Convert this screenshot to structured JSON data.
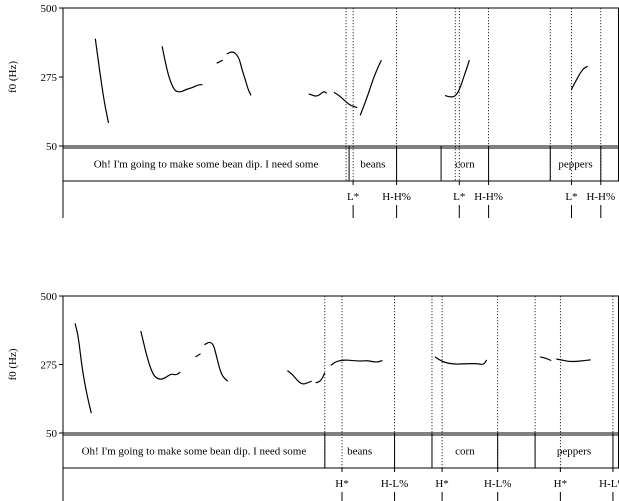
{
  "chart_data": [
    {
      "type": "line",
      "ylabel": "f0 (Hz)",
      "ylim": [
        50,
        500
      ],
      "yticks": [
        50,
        275,
        500
      ],
      "xlim": [
        0,
        550
      ],
      "tiers": {
        "words": [
          {
            "text": "Oh! I'm going to make some bean dip. I need some",
            "x0": 0,
            "x1": 283
          },
          {
            "text": "beans",
            "x0": 283,
            "x1": 330
          },
          {
            "text": "",
            "x0": 330,
            "x1": 374
          },
          {
            "text": "corn",
            "x0": 374,
            "x1": 421
          },
          {
            "text": "",
            "x0": 421,
            "x1": 482
          },
          {
            "text": "peppers",
            "x0": 482,
            "x1": 532
          },
          {
            "text": "",
            "x0": 532,
            "x1": 550
          }
        ],
        "tone_boundaries": [
          280,
          287,
          330,
          388,
          392,
          421,
          482,
          503,
          532
        ],
        "tones": [
          {
            "text": "L*",
            "x": 287
          },
          {
            "text": "H-H%",
            "x": 330
          },
          {
            "text": "L*",
            "x": 392
          },
          {
            "text": "H-H%",
            "x": 421
          },
          {
            "text": "L*",
            "x": 503
          },
          {
            "text": "H-H%",
            "x": 532
          }
        ]
      },
      "series": [
        {
          "points": [
            [
              32,
              400
            ],
            [
              36,
              300
            ],
            [
              41,
              190
            ],
            [
              45,
              125
            ]
          ]
        },
        {
          "points": [
            [
              98,
              375
            ],
            [
              104,
              280
            ],
            [
              110,
              230
            ],
            [
              116,
              225
            ],
            [
              122,
              235
            ],
            [
              128,
              240
            ],
            [
              134,
              250
            ],
            [
              138,
              250
            ]
          ]
        },
        {
          "points": [
            [
              152,
              320
            ],
            [
              158,
              330
            ]
          ]
        },
        {
          "points": [
            [
              162,
              350
            ],
            [
              168,
              360
            ],
            [
              174,
              340
            ],
            [
              177,
              300
            ],
            [
              180,
              270
            ],
            [
              183,
              235
            ],
            [
              186,
              215
            ]
          ]
        },
        {
          "points": [
            [
              243,
              220
            ],
            [
              247,
              215
            ],
            [
              251,
              212
            ],
            [
              255,
              220
            ],
            [
              258,
              228
            ],
            [
              261,
              222
            ]
          ]
        },
        {
          "points": [
            [
              268,
              225
            ],
            [
              273,
              215
            ],
            [
              278,
              200
            ],
            [
              283,
              185
            ],
            [
              287,
              180
            ],
            [
              291,
              175
            ]
          ]
        },
        {
          "points": [
            [
              294,
              150
            ],
            [
              297,
              175
            ],
            [
              302,
              220
            ],
            [
              307,
              270
            ],
            [
              312,
              310
            ],
            [
              315,
              330
            ]
          ]
        },
        {
          "points": [
            [
              378,
              215
            ],
            [
              382,
              210
            ],
            [
              387,
              210
            ],
            [
              391,
              225
            ],
            [
              395,
              260
            ],
            [
              399,
              300
            ],
            [
              402,
              330
            ]
          ]
        },
        {
          "points": [
            [
              503,
              235
            ],
            [
              507,
              260
            ],
            [
              511,
              285
            ],
            [
              515,
              303
            ],
            [
              519,
              310
            ]
          ]
        }
      ]
    },
    {
      "type": "line",
      "ylabel": "f0 (Hz)",
      "ylim": [
        50,
        500
      ],
      "yticks": [
        50,
        275,
        500
      ],
      "xlim": [
        0,
        550
      ],
      "tiers": {
        "words": [
          {
            "text": "Oh! I'm going to make some bean dip. I need some",
            "x0": 0,
            "x1": 259
          },
          {
            "text": "beans",
            "x0": 259,
            "x1": 328
          },
          {
            "text": "",
            "x0": 328,
            "x1": 365
          },
          {
            "text": "corn",
            "x0": 365,
            "x1": 430
          },
          {
            "text": "",
            "x0": 430,
            "x1": 467
          },
          {
            "text": "peppers",
            "x0": 467,
            "x1": 544
          },
          {
            "text": "",
            "x0": 544,
            "x1": 550
          }
        ],
        "tone_boundaries": [
          259,
          276,
          328,
          365,
          375,
          430,
          467,
          492,
          544
        ],
        "tones": [
          {
            "text": "H*",
            "x": 276
          },
          {
            "text": "H-L%",
            "x": 328
          },
          {
            "text": "H*",
            "x": 375
          },
          {
            "text": "H-L%",
            "x": 430
          },
          {
            "text": "H*",
            "x": 492
          },
          {
            "text": "H-L%",
            "x": 544
          }
        ]
      },
      "series": [
        {
          "points": [
            [
              12,
              410
            ],
            [
              15,
              370
            ],
            [
              19,
              260
            ],
            [
              24,
              170
            ],
            [
              28,
              115
            ]
          ]
        },
        {
          "points": [
            [
              77,
              385
            ],
            [
              83,
              300
            ],
            [
              89,
              240
            ],
            [
              95,
              225
            ],
            [
              101,
              230
            ],
            [
              107,
              245
            ],
            [
              112,
              240
            ],
            [
              116,
              250
            ]
          ]
        },
        {
          "points": [
            [
              131,
              300
            ],
            [
              136,
              310
            ]
          ]
        },
        {
          "points": [
            [
              140,
              340
            ],
            [
              145,
              350
            ],
            [
              149,
              340
            ],
            [
              152,
              300
            ],
            [
              155,
              260
            ],
            [
              158,
              235
            ],
            [
              163,
              220
            ]
          ]
        },
        {
          "points": [
            [
              222,
              255
            ],
            [
              226,
              245
            ],
            [
              230,
              230
            ],
            [
              234,
              215
            ],
            [
              238,
              210
            ],
            [
              242,
              215
            ],
            [
              246,
              220
            ]
          ]
        },
        {
          "points": [
            [
              250,
              215
            ],
            [
              255,
              220
            ],
            [
              259,
              248
            ]
          ]
        },
        {
          "points": [
            [
              265,
              272
            ],
            [
              270,
              285
            ],
            [
              278,
              290
            ],
            [
              286,
              288
            ],
            [
              294,
              286
            ],
            [
              302,
              288
            ],
            [
              310,
              282
            ],
            [
              316,
              288
            ]
          ]
        },
        {
          "points": [
            [
              368,
              300
            ],
            [
              375,
              285
            ],
            [
              382,
              278
            ],
            [
              390,
              276
            ],
            [
              400,
              278
            ],
            [
              410,
              278
            ],
            [
              416,
              274
            ],
            [
              419,
              290
            ]
          ]
        },
        {
          "points": [
            [
              472,
              300
            ],
            [
              478,
              295
            ],
            [
              483,
              288
            ]
          ]
        },
        {
          "points": [
            [
              488,
              293
            ],
            [
              493,
              290
            ],
            [
              500,
              285
            ],
            [
              508,
              285
            ],
            [
              516,
              288
            ],
            [
              522,
              290
            ]
          ]
        }
      ]
    }
  ]
}
